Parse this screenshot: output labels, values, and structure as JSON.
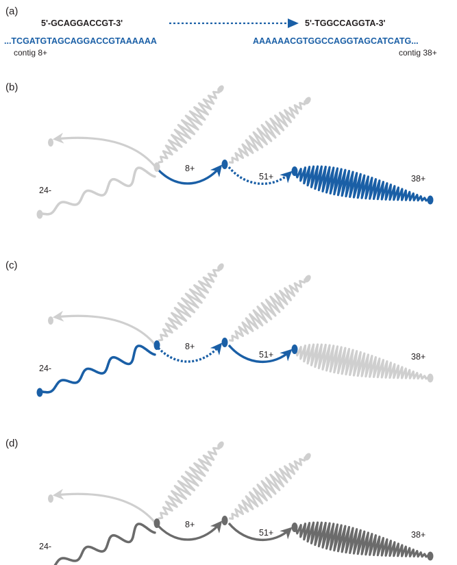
{
  "colors": {
    "blue": "#1a5fa6",
    "grey": "#cfcfcf",
    "dark": "#6b6b6b",
    "text": "#231f20"
  },
  "panel_a": {
    "label": "(a)",
    "primer_left": "5'-GCAGGACCGT-3'",
    "primer_right": "5'-TGGCCAGGTA-3'",
    "seq_left": "...TCGATGTAGCAGGACCGTAAAAAA",
    "seq_right": "AAAAAACGTGGCCAGGTAGCATCATG...",
    "contig_left": "contig 8+",
    "contig_right": "contig 38+"
  },
  "graphs": [
    {
      "label": "(b)",
      "node_labels": {
        "n24": "24-",
        "n8": "8+",
        "n51": "51+",
        "n38": "38+"
      },
      "parts": {
        "arrow": "grey",
        "c24": "grey",
        "up1": "grey",
        "up2": "grey",
        "e8": "blue",
        "e51": "blue",
        "c38": "blue"
      },
      "dashed": [
        "e51"
      ],
      "dots": {
        "d1": "grey",
        "d2": "blue",
        "d3": "blue",
        "d4": "blue"
      }
    },
    {
      "label": "(c)",
      "node_labels": {
        "n24": "24-",
        "n8": "8+",
        "n51": "51+",
        "n38": "38+"
      },
      "parts": {
        "arrow": "grey",
        "c24": "blue",
        "up1": "grey",
        "up2": "grey",
        "e8": "blue",
        "e51": "blue",
        "c38": "grey"
      },
      "dashed": [
        "e8"
      ],
      "dots": {
        "d1": "blue",
        "d2": "blue",
        "d3": "blue",
        "d4": "grey"
      }
    },
    {
      "label": "(d)",
      "node_labels": {
        "n24": "24-",
        "n8": "8+",
        "n51": "51+",
        "n38": "38+"
      },
      "parts": {
        "arrow": "grey",
        "c24": "dark",
        "up1": "grey",
        "up2": "grey",
        "e8": "dark",
        "e51": "dark",
        "c38": "dark"
      },
      "dashed": [],
      "dots": {
        "d1": "dark",
        "d2": "dark",
        "d3": "dark",
        "d4": "dark"
      }
    }
  ]
}
